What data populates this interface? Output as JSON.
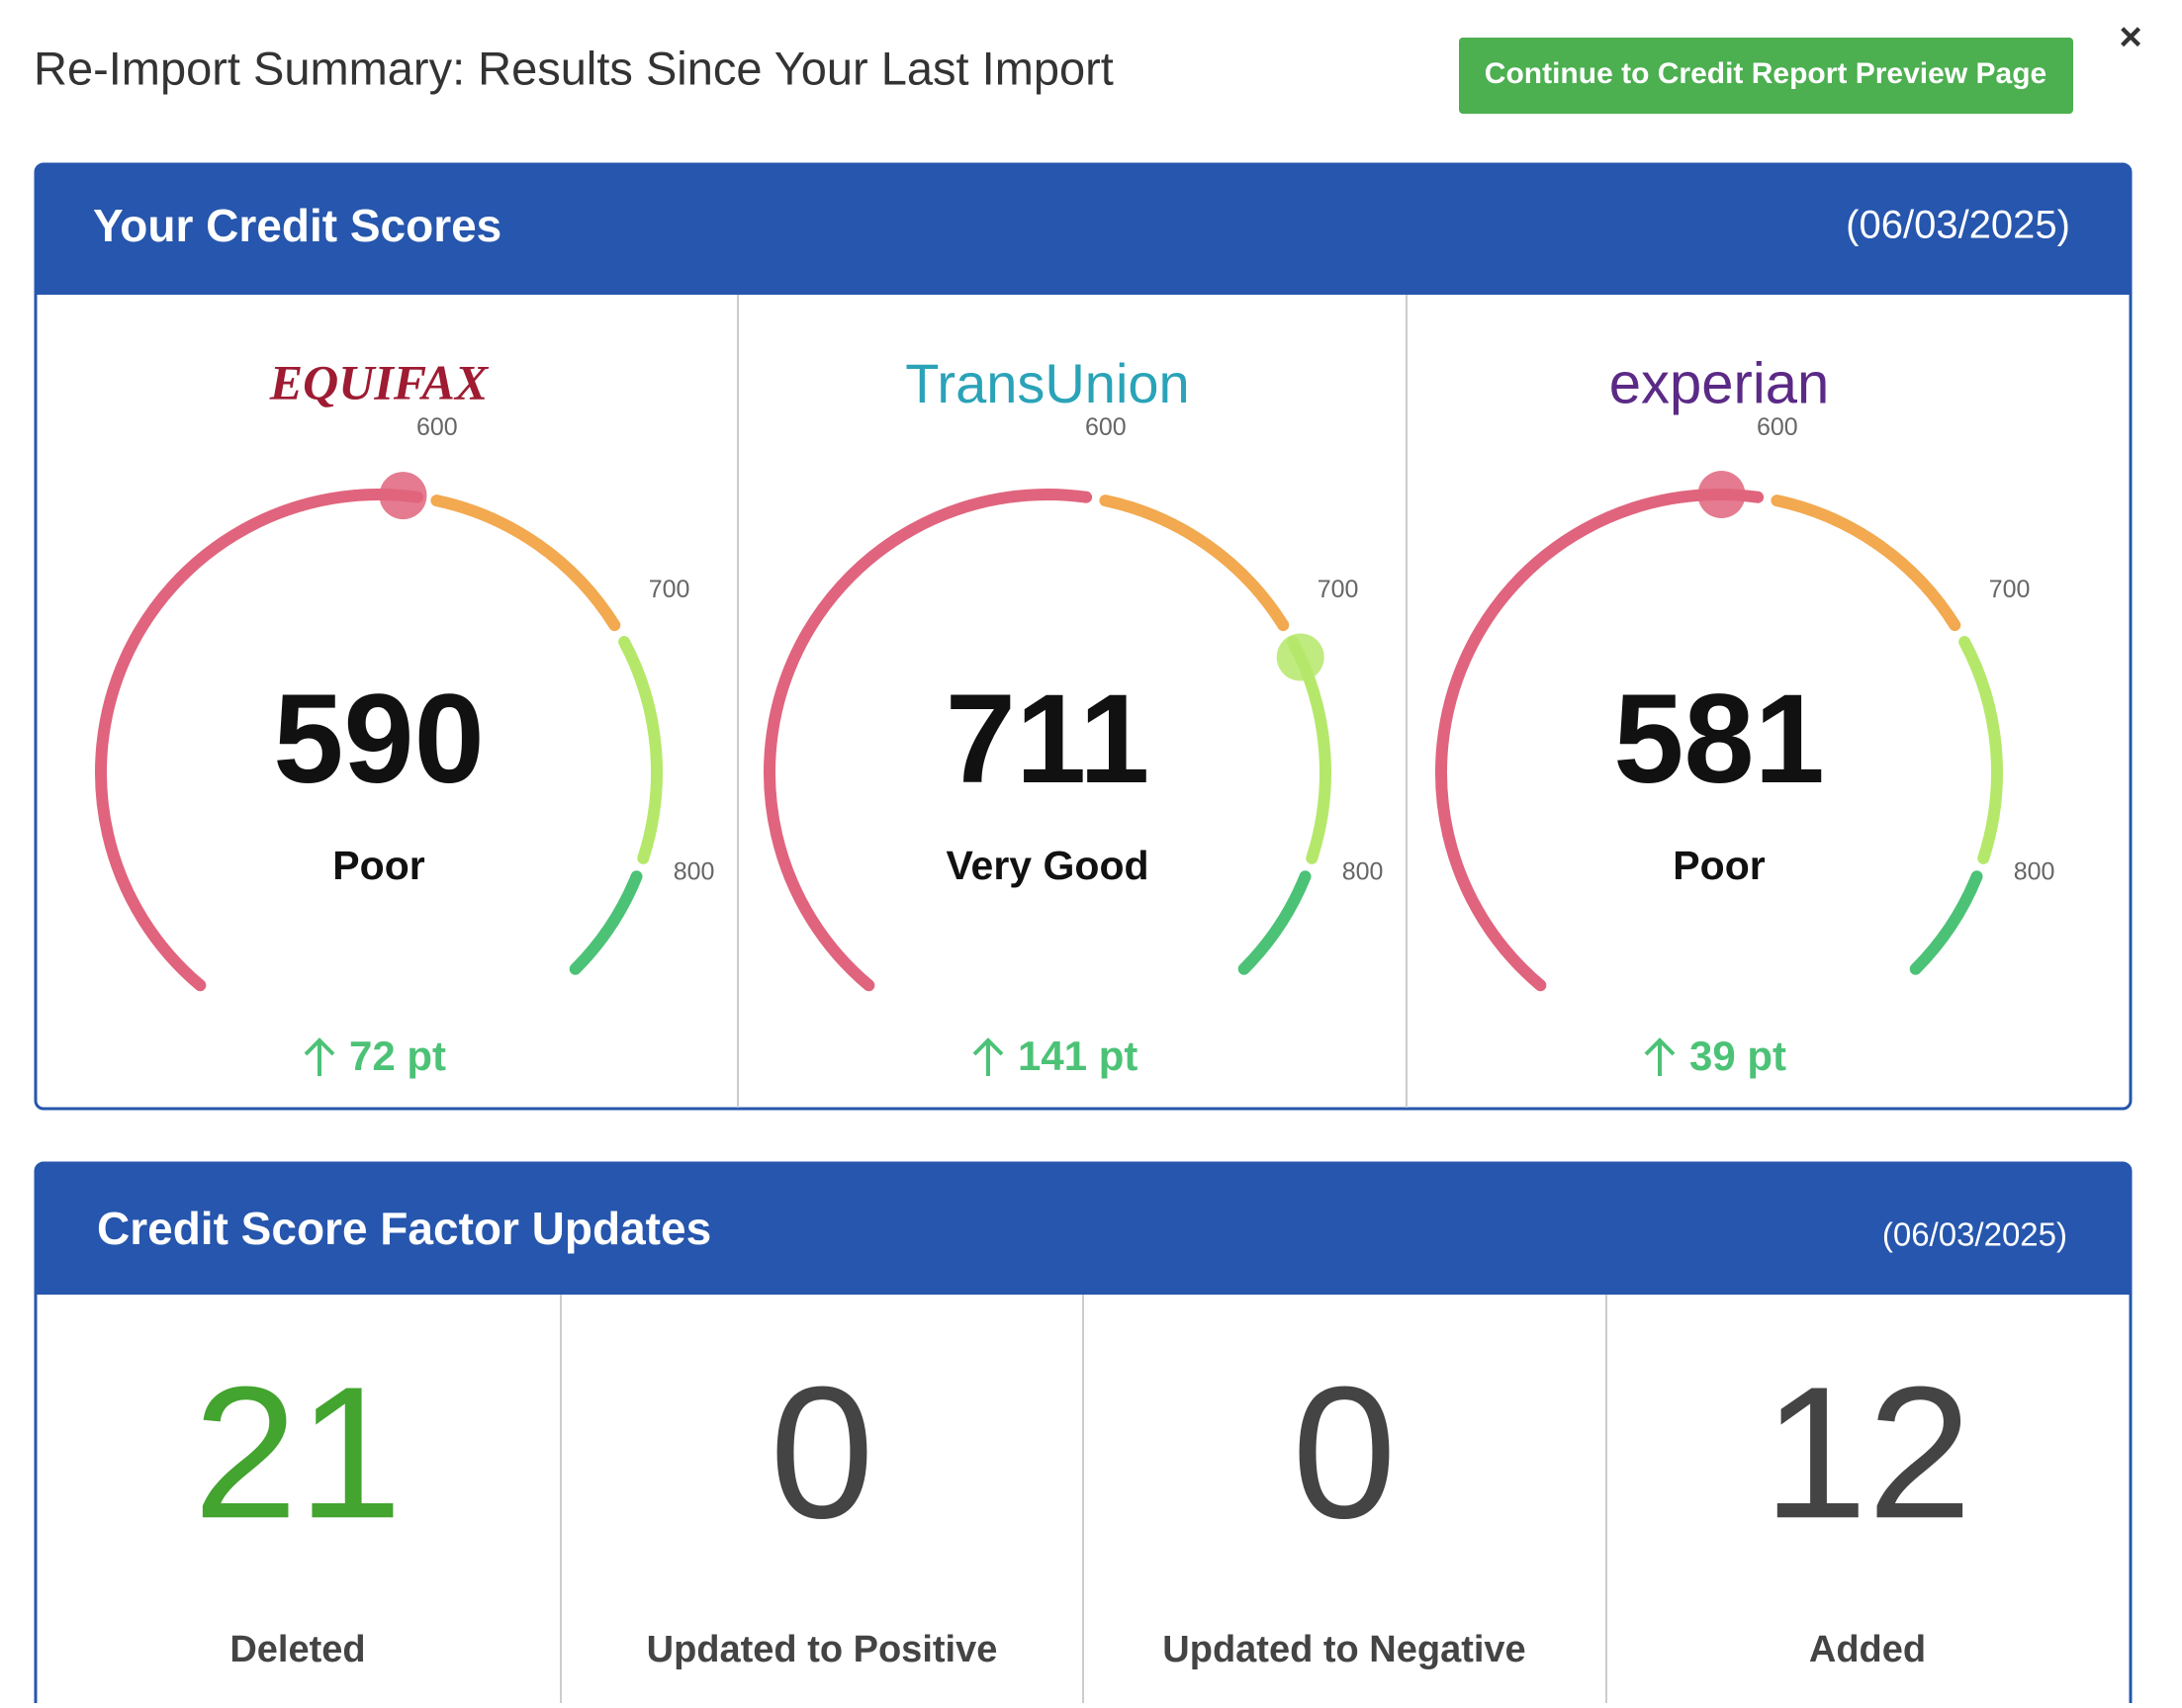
{
  "header": {
    "title": "Re-Import Summary: Results Since Your Last Import",
    "button": "Continue to Credit Report Preview Page",
    "close": "×"
  },
  "scores_panel": {
    "title": "Your Credit Scores",
    "date": "(06/03/2025)",
    "gauge_range": [
      300,
      850
    ],
    "gauge_ticks": [
      600,
      700,
      800
    ],
    "bureaus": [
      {
        "name": "EQUIFAX",
        "score": 590,
        "rating": "Poor",
        "change": "72 pt"
      },
      {
        "name": "TransUnion",
        "score": 711,
        "rating": "Very Good",
        "change": "141 pt"
      },
      {
        "name": "experian",
        "score": 581,
        "rating": "Poor",
        "change": "39 pt"
      }
    ]
  },
  "factors_panel": {
    "title": "Credit Score Factor Updates",
    "date": "(06/03/2025)",
    "items": [
      {
        "value": 21,
        "label": "Deleted"
      },
      {
        "value": 0,
        "label": "Updated to Positive"
      },
      {
        "value": 0,
        "label": "Updated to Negative"
      },
      {
        "value": 12,
        "label": "Added"
      }
    ]
  }
}
